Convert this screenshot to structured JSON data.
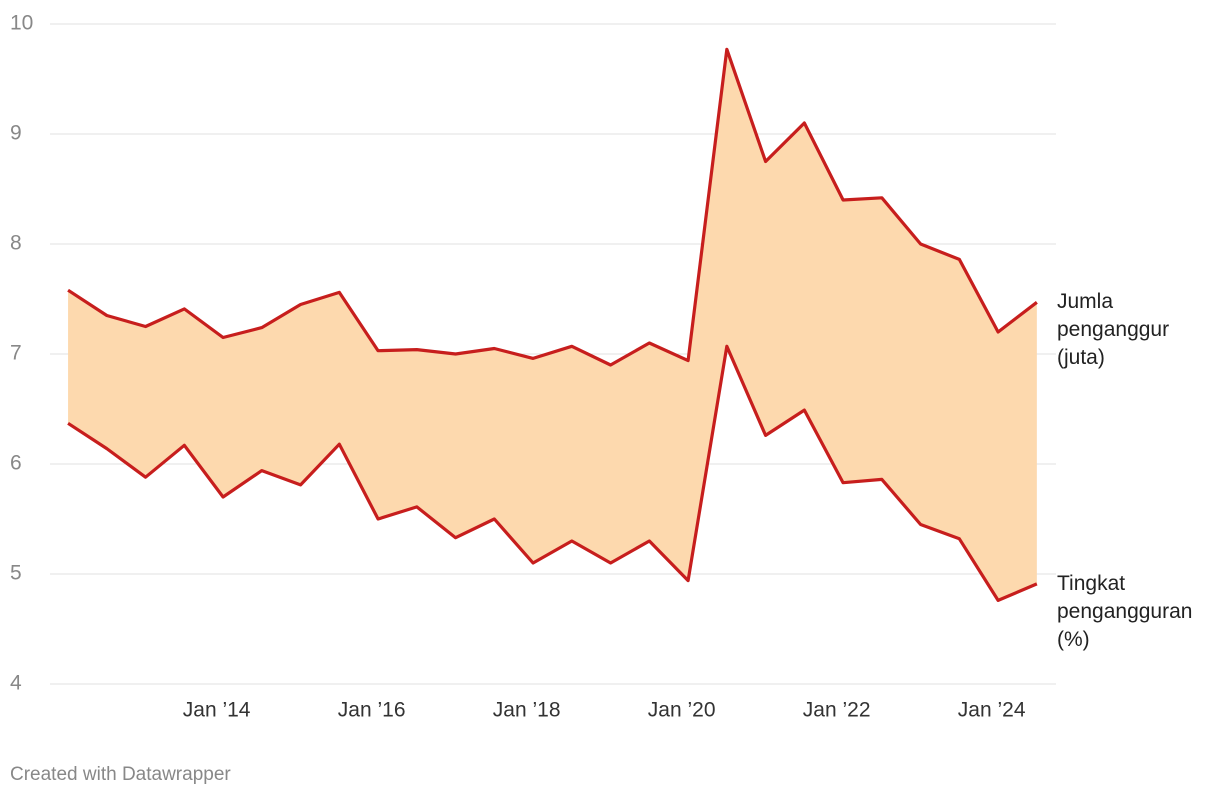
{
  "chart_data": {
    "type": "line",
    "x": [
      2012.083,
      2012.583,
      2013.083,
      2013.583,
      2014.083,
      2014.583,
      2015.083,
      2015.583,
      2016.083,
      2016.583,
      2017.083,
      2017.583,
      2018.083,
      2018.583,
      2019.083,
      2019.583,
      2020.083,
      2020.583,
      2021.083,
      2021.583,
      2022.083,
      2022.583,
      2023.083,
      2023.583,
      2024.083,
      2024.583
    ],
    "series": [
      {
        "name": "Jumla penganggur (juta)",
        "color": "#c71e1d",
        "values": [
          7.58,
          7.35,
          7.25,
          7.41,
          7.15,
          7.24,
          7.45,
          7.56,
          7.03,
          7.04,
          7.0,
          7.05,
          6.96,
          7.07,
          6.9,
          7.1,
          6.94,
          9.77,
          8.75,
          9.1,
          8.4,
          8.42,
          8.0,
          7.86,
          7.2,
          7.47
        ]
      },
      {
        "name": "Tingkat pengangguran (%)",
        "color": "#c71e1d",
        "values": [
          6.37,
          6.14,
          5.88,
          6.17,
          5.7,
          5.94,
          5.81,
          6.18,
          5.5,
          5.61,
          5.33,
          5.5,
          5.1,
          5.3,
          5.1,
          5.3,
          4.94,
          7.07,
          6.26,
          6.49,
          5.83,
          5.86,
          5.45,
          5.32,
          4.76,
          4.91
        ]
      }
    ],
    "fill_between": true,
    "fill_color": "#fdd9ae",
    "xlim": [
      2011.85,
      2024.83
    ],
    "xticks": [
      {
        "value": 2014,
        "label": "Jan ’14"
      },
      {
        "value": 2016,
        "label": "Jan ’16"
      },
      {
        "value": 2018,
        "label": "Jan ’18"
      },
      {
        "value": 2020,
        "label": "Jan ’20"
      },
      {
        "value": 2022,
        "label": "Jan ’22"
      },
      {
        "value": 2024,
        "label": "Jan ’24"
      }
    ],
    "ylim": [
      4,
      10
    ],
    "yticks": [
      4,
      5,
      6,
      7,
      8,
      9,
      10
    ],
    "grid": true,
    "credit": "Created with Datawrapper"
  }
}
